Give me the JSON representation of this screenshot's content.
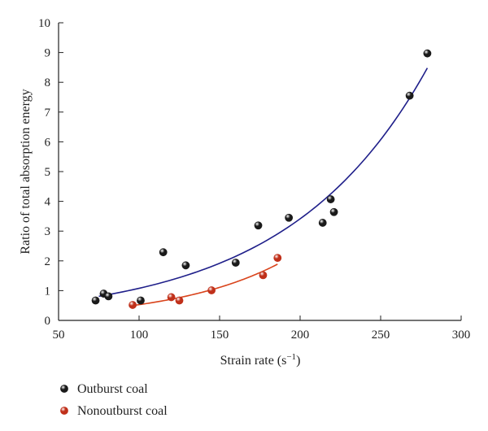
{
  "chart_data": {
    "type": "scatter",
    "xlabel": "Strain rate (s",
    "xlabel_sup": "−1",
    "xlabel_close": ")",
    "ylabel": "Ratio of total absorption energy",
    "xlim": [
      50,
      300
    ],
    "ylim": [
      0,
      10
    ],
    "x_ticks": [
      50,
      100,
      150,
      200,
      250,
      300
    ],
    "y_ticks": [
      0,
      1,
      2,
      3,
      4,
      5,
      6,
      7,
      8,
      9,
      10
    ],
    "x_tick_labels": [
      "50",
      "100",
      "150",
      "200",
      "250",
      "300"
    ],
    "y_tick_labels": [
      "0",
      "1",
      "2",
      "3",
      "4",
      "5",
      "6",
      "7",
      "8",
      "9",
      "10"
    ],
    "grid": false,
    "legend_position": "bottom-left",
    "series": [
      {
        "name": "Outburst coal",
        "marker_color": "#1a1a1a",
        "fit_color": "#1f1f8a",
        "fit_type": "exponential",
        "fit_x_range": [
          75,
          279
        ],
        "points": [
          {
            "x": 73,
            "y": 0.67
          },
          {
            "x": 78,
            "y": 0.9
          },
          {
            "x": 81,
            "y": 0.81
          },
          {
            "x": 101,
            "y": 0.67
          },
          {
            "x": 115,
            "y": 2.29
          },
          {
            "x": 129,
            "y": 1.85
          },
          {
            "x": 160,
            "y": 1.94
          },
          {
            "x": 174,
            "y": 3.19
          },
          {
            "x": 193,
            "y": 3.45
          },
          {
            "x": 214,
            "y": 3.28
          },
          {
            "x": 219,
            "y": 4.07
          },
          {
            "x": 221,
            "y": 3.64
          },
          {
            "x": 268,
            "y": 7.55
          },
          {
            "x": 279,
            "y": 8.97
          }
        ]
      },
      {
        "name": "Nonoutburst coal",
        "marker_color": "#c0301a",
        "fit_color": "#d9441c",
        "fit_type": "exponential",
        "fit_x_range": [
          96,
          186
        ],
        "points": [
          {
            "x": 96,
            "y": 0.52
          },
          {
            "x": 120,
            "y": 0.78
          },
          {
            "x": 125,
            "y": 0.67
          },
          {
            "x": 145,
            "y": 1.01
          },
          {
            "x": 177,
            "y": 1.52
          },
          {
            "x": 186,
            "y": 2.1
          }
        ]
      }
    ]
  }
}
